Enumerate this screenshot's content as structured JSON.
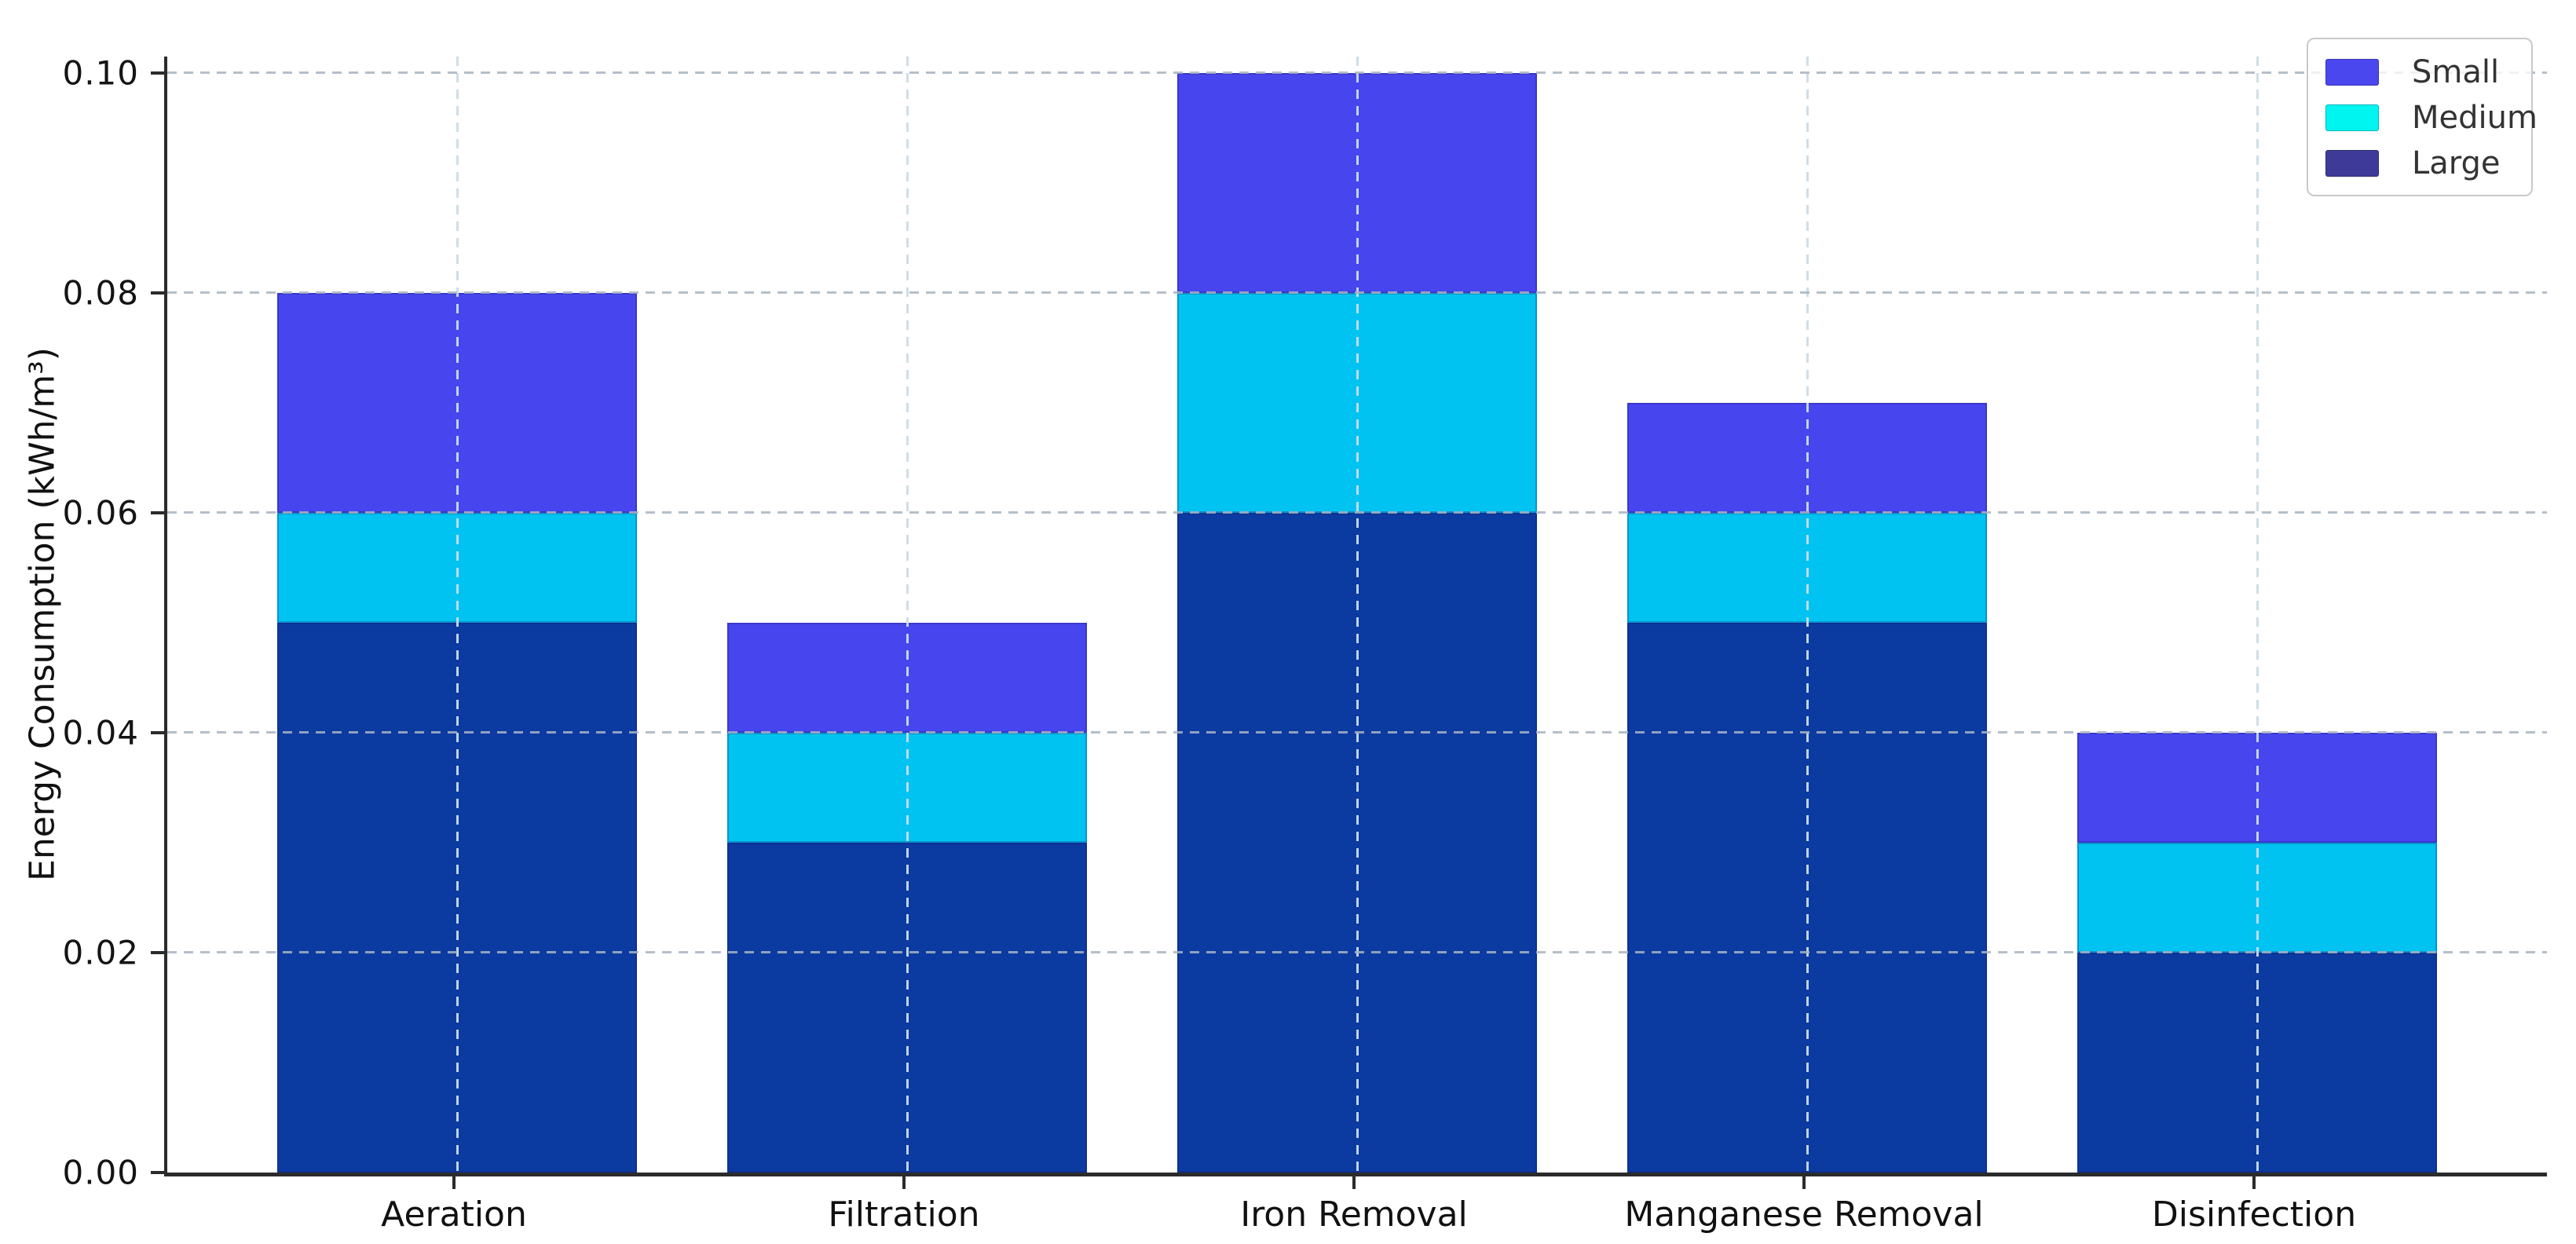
{
  "chart_data": {
    "type": "bar",
    "subtype": "stacked-vertical",
    "title": "",
    "ylabel": "Energy Consumption (kWh/m³)",
    "xlabel": "",
    "categories": [
      "Aeration",
      "Filtration",
      "Iron Removal",
      "Manganese Removal",
      "Disinfection"
    ],
    "series": [
      {
        "name": "Small",
        "bar_color": "#4745ee",
        "legend_color": "#4b47ef",
        "values": [
          0.02,
          0.01,
          0.02,
          0.01,
          0.01
        ]
      },
      {
        "name": "Medium",
        "bar_color": "#00c3f1",
        "legend_color": "#00f4f0",
        "values": [
          0.01,
          0.01,
          0.02,
          0.01,
          0.01
        ]
      },
      {
        "name": "Large",
        "bar_color": "#0b3aa1",
        "legend_color": "#3e3b98",
        "values": [
          0.05,
          0.03,
          0.06,
          0.05,
          0.02
        ]
      }
    ],
    "stack_order_bottom_to_top": [
      "Large",
      "Medium",
      "Small"
    ],
    "stack_totals": [
      0.08,
      0.05,
      0.1,
      0.07,
      0.04
    ],
    "yticks": [
      0.0,
      0.02,
      0.04,
      0.06,
      0.08,
      0.1
    ],
    "ytick_labels": [
      "0.00",
      "0.02",
      "0.04",
      "0.06",
      "0.08",
      "0.10"
    ],
    "ylim": [
      0,
      0.1015
    ],
    "grid": "dashed gridlines on both axes, drawn over bars",
    "legend_position": "upper right",
    "background_color": "#ffffff",
    "axis_color": "#2b2b2b"
  }
}
